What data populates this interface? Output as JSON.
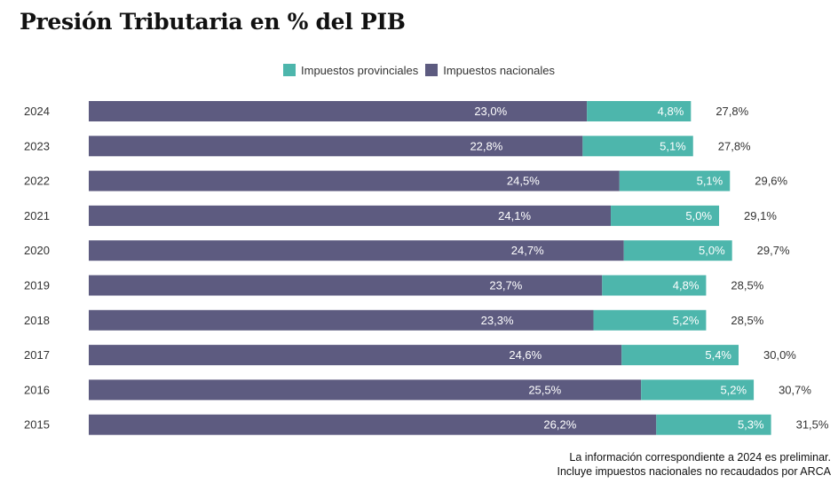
{
  "title": "Presión Tributaria en % del PIB",
  "colors": {
    "provincial": "#4db6ac",
    "nacional": "#5d5b80"
  },
  "legend": {
    "provincial": "Impuestos provinciales",
    "nacional": "Impuestos nacionales"
  },
  "notes": [
    "La información correspondiente a 2024 es preliminar.",
    "Incluye impuestos nacionales no recaudados por ARCA"
  ],
  "chart_data": {
    "type": "bar",
    "orientation": "horizontal",
    "stacked": true,
    "categories": [
      "2024",
      "2023",
      "2022",
      "2021",
      "2020",
      "2019",
      "2018",
      "2017",
      "2016",
      "2015"
    ],
    "series": [
      {
        "name": "Impuestos nacionales",
        "values": [
          23.0,
          22.8,
          24.5,
          24.1,
          24.7,
          23.7,
          23.3,
          24.6,
          25.5,
          26.2
        ],
        "labels": [
          "23,0%",
          "22,8%",
          "24,5%",
          "24,1%",
          "24,7%",
          "23,7%",
          "23,3%",
          "24,6%",
          "25,5%",
          "26,2%"
        ]
      },
      {
        "name": "Impuestos provinciales",
        "values": [
          4.8,
          5.1,
          5.1,
          5.0,
          5.0,
          4.8,
          5.2,
          5.4,
          5.2,
          5.3
        ],
        "labels": [
          "4,8%",
          "5,1%",
          "5,1%",
          "5,0%",
          "5,0%",
          "4,8%",
          "5,2%",
          "5,4%",
          "5,2%",
          "5,3%"
        ]
      }
    ],
    "totals": [
      27.8,
      27.8,
      29.6,
      29.1,
      29.7,
      28.5,
      28.5,
      30.0,
      30.7,
      31.5
    ],
    "total_labels": [
      "27,8%",
      "27,8%",
      "29,6%",
      "29,1%",
      "29,7%",
      "28,5%",
      "28,5%",
      "30,0%",
      "30,7%",
      "31,5%"
    ],
    "legend_position": "top-center",
    "grid": false
  }
}
